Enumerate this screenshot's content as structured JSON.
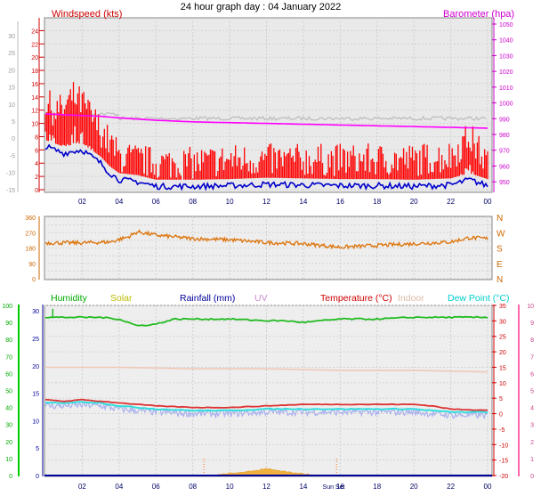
{
  "page_title": "24 hour graph day : 04 January 2022",
  "x_ticks": [
    "02",
    "04",
    "06",
    "08",
    "10",
    "12",
    "14",
    "16",
    "18",
    "20",
    "22",
    "00"
  ],
  "sun_label": "Sun Set",
  "chart_data": [
    {
      "type": "line",
      "id": "wind_baro",
      "legend_left": "Windspeed (kts)",
      "legend_right": "Barometer (hpa)",
      "y_left_ticks": [
        "30",
        "25",
        "20",
        "15",
        "10",
        "5",
        "0",
        "-5",
        "-10",
        "-15"
      ],
      "y_left_ticks_kts": [
        "24",
        "22",
        "20",
        "18",
        "16",
        "14",
        "12",
        "10",
        "8",
        "6",
        "4",
        "2",
        "0"
      ],
      "y_right_ticks": [
        "1050",
        "1040",
        "1030",
        "1020",
        "1010",
        "1000",
        "990",
        "980",
        "970",
        "960",
        "950"
      ],
      "ylim_kts": [
        0,
        25
      ],
      "ylim_hpa": [
        945,
        1050
      ],
      "colors": {
        "wind": "#ff0000",
        "gust_line": "#0000cc",
        "baro": "#ff00ff",
        "temp_ghost": "#c0c0c0"
      },
      "series": [
        {
          "name": "Barometer (hpa)",
          "x": [
            0,
            1,
            2,
            3,
            4,
            6,
            8,
            10,
            12,
            14,
            16,
            18,
            20,
            22,
            24
          ],
          "values": [
            993,
            992.5,
            992,
            991.5,
            990.5,
            989,
            988,
            987.5,
            987,
            986.5,
            986,
            985.5,
            985,
            984.5,
            984
          ]
        },
        {
          "name": "Windspeed (kts)",
          "x": [
            0,
            0.5,
            1,
            1.5,
            2,
            2.5,
            3,
            3.5,
            4,
            5,
            6,
            7,
            8,
            10,
            12,
            14,
            16,
            18,
            20,
            22,
            23,
            24
          ],
          "values": [
            6.5,
            6,
            5.5,
            5.8,
            6,
            5,
            4,
            2.5,
            1.5,
            1.2,
            0.5,
            0.5,
            0.5,
            0.6,
            0.8,
            0.7,
            0.6,
            0.6,
            0.5,
            0.7,
            1.5,
            0.6
          ]
        },
        {
          "name": "gust",
          "x": [
            0,
            0.5,
            1,
            1.5,
            2,
            2.5,
            3,
            3.5,
            4,
            5,
            6,
            7,
            8,
            10,
            12,
            14,
            16,
            18,
            20,
            22,
            23,
            24
          ],
          "values": [
            12,
            11,
            11,
            13,
            12,
            10,
            8,
            6,
            4,
            3.5,
            3,
            3,
            3,
            3.5,
            3.5,
            3.5,
            3.5,
            3.5,
            3.5,
            4,
            7,
            3
          ]
        }
      ]
    },
    {
      "type": "line",
      "id": "wind_dir",
      "y_left_ticks": [
        "360",
        "270",
        "180",
        "90",
        "0"
      ],
      "y_right_ticks": [
        "N",
        "W",
        "S",
        "E",
        "N"
      ],
      "ylim": [
        0,
        360
      ],
      "colors": {
        "dir": "#dd7711"
      },
      "series": [
        {
          "name": "Wind direction",
          "x": [
            0,
            2,
            3.5,
            4.5,
            5,
            6,
            8,
            10,
            12,
            14,
            16,
            18,
            20,
            22,
            23,
            24
          ],
          "values": [
            210,
            210,
            215,
            245,
            275,
            255,
            235,
            228,
            212,
            205,
            185,
            195,
            205,
            215,
            240,
            235
          ]
        }
      ]
    },
    {
      "type": "line",
      "id": "temp_hum",
      "legend": [
        {
          "label": "Humidity",
          "color": "#00aa00"
        },
        {
          "label": "Solar",
          "color": "#bbbb00"
        },
        {
          "label": "Rainfall (mm)",
          "color": "#000099"
        },
        {
          "label": "UV",
          "color": "#cc88cc"
        },
        {
          "label": "Temperature (°C)",
          "color": "#cc0000"
        },
        {
          "label": "Indoor",
          "color": "#ddbbaa"
        },
        {
          "label": "Dew Point (°C)",
          "color": "#00cccc"
        }
      ],
      "y_hum_ticks": [
        "100",
        "90",
        "80",
        "70",
        "60",
        "50",
        "40",
        "30",
        "20",
        "10",
        "0"
      ],
      "y_rain_ticks": [
        "30",
        "25",
        "20",
        "15",
        "10",
        "5",
        "0"
      ],
      "y_right_ticks": [
        "35",
        "30",
        "25",
        "20",
        "15",
        "10",
        "5",
        "0",
        "-5",
        "-10",
        "-15",
        "-20"
      ],
      "y_uv_ticks": [
        "10",
        "9",
        "8",
        "7",
        "6",
        "5",
        "4",
        "3",
        "2",
        "1",
        "0"
      ],
      "ylim_temp": [
        -20,
        35
      ],
      "ylim_hum": [
        0,
        100
      ],
      "series": [
        {
          "name": "Humidity",
          "x": [
            0,
            1,
            2,
            3,
            4,
            5,
            6,
            7,
            8,
            10,
            12,
            13,
            14,
            15,
            16,
            18,
            20,
            22,
            24
          ],
          "values": [
            93,
            93,
            93,
            93,
            92,
            88,
            89,
            92,
            92,
            92,
            91,
            91,
            90,
            91,
            92,
            92,
            93,
            93,
            93
          ]
        },
        {
          "name": "Temperature (°C)",
          "x": [
            0,
            1,
            2,
            3,
            4,
            5,
            6,
            8,
            10,
            12,
            14,
            16,
            18,
            20,
            21,
            22,
            23,
            24
          ],
          "values": [
            4.5,
            4,
            4.5,
            4,
            3.5,
            3,
            2.5,
            2,
            2,
            2.5,
            3,
            3,
            3,
            3,
            2.5,
            1.5,
            1.2,
            1.2
          ]
        },
        {
          "name": "Dew Point (°C)",
          "x": [
            0,
            1,
            2,
            3,
            4,
            5,
            6,
            8,
            10,
            12,
            14,
            16,
            18,
            20,
            21,
            22,
            23,
            24
          ],
          "values": [
            3.5,
            3.5,
            3.8,
            3.5,
            2.5,
            2,
            1.5,
            1,
            1,
            1.5,
            1.5,
            1.5,
            1.5,
            1.5,
            1,
            0.5,
            0.5,
            0.5
          ]
        },
        {
          "name": "Indoor",
          "x": [
            0,
            4,
            8,
            12,
            16,
            20,
            24
          ],
          "values": [
            15,
            15,
            14.5,
            14.5,
            14,
            14,
            13.5
          ]
        },
        {
          "name": "Rainfall (mm)",
          "x": [
            0,
            24
          ],
          "values": [
            0,
            0
          ]
        },
        {
          "name": "Solar",
          "x": [
            8.8,
            9.5,
            10.5,
            11.5,
            12,
            12.5,
            13.5,
            14.5,
            15.2
          ],
          "values": [
            0,
            1.5,
            3.5,
            6,
            8,
            6,
            3,
            1,
            0
          ]
        }
      ]
    }
  ]
}
